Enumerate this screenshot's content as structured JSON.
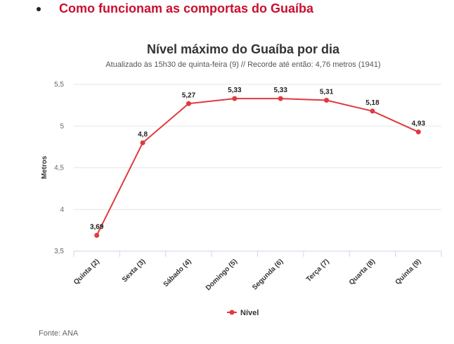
{
  "link": {
    "label": "Como funcionam as comportas do Guaíba"
  },
  "chart_data": {
    "type": "line",
    "title": "Nível máximo do Guaíba por dia",
    "subtitle": "Atualizado às 15h30 de quinta-feira (9) // Recorde até então: 4,76 metros (1941)",
    "ylabel": "Metros",
    "categories": [
      "Quinta (2)",
      "Sexta (3)",
      "Sábado (4)",
      "Domingo (5)",
      "Segunda (6)",
      "Terça (7)",
      "Quarta (8)",
      "Quinta (9)"
    ],
    "series": [
      {
        "name": "Nível",
        "values": [
          3.69,
          4.8,
          5.27,
          5.33,
          5.33,
          5.31,
          5.18,
          4.93
        ],
        "labels": [
          "3,69",
          "4,8",
          "5,27",
          "5,33",
          "5,33",
          "5,31",
          "5,18",
          "4,93"
        ]
      }
    ],
    "ylim": [
      3.5,
      5.5
    ],
    "yticks": [
      3.5,
      4,
      4.5,
      5,
      5.5
    ],
    "ytick_labels": [
      "3,5",
      "4",
      "4,5",
      "5",
      "5,5"
    ],
    "grid": true,
    "legend": "bottom-center",
    "color": "#e03a3e"
  },
  "source": "Fonte: ANA"
}
